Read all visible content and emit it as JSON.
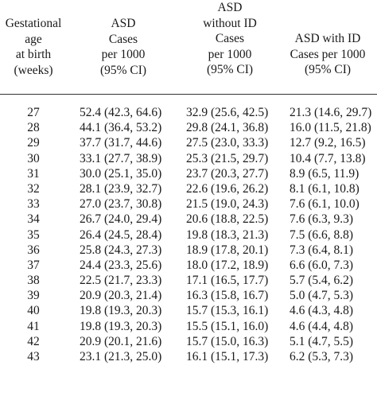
{
  "header": {
    "col1": [
      "Gestational",
      "age",
      "at birth",
      "(weeks)"
    ],
    "col2": [
      "ASD",
      "Cases",
      "per 1000",
      "(95% CI)"
    ],
    "col3": [
      "ASD",
      "without ID",
      "Cases",
      "per 1000",
      "(95% CI)"
    ],
    "col4": [
      "ASD with ID",
      "Cases per 1000",
      "(95% CI)"
    ]
  },
  "rows": [
    {
      "age": "27",
      "asd": "52.4 (42.3, 64.6)",
      "no_id": "32.9 (25.6, 42.5)",
      "with_id": "21.3 (14.6, 29.7)"
    },
    {
      "age": "28",
      "asd": "44.1 (36.4, 53.2)",
      "no_id": "29.8 (24.1, 36.8)",
      "with_id": "16.0 (11.5, 21.8)"
    },
    {
      "age": "29",
      "asd": "37.7 (31.7, 44.6)",
      "no_id": "27.5 (23.0, 33.3)",
      "with_id": "12.7 (9.2, 16.5)"
    },
    {
      "age": "30",
      "asd": "33.1 (27.7, 38.9)",
      "no_id": "25.3 (21.5, 29.7)",
      "with_id": "10.4 (7.7, 13.8)"
    },
    {
      "age": "31",
      "asd": "30.0 (25.1, 35.0)",
      "no_id": "23.7 (20.3, 27.7)",
      "with_id": "8.9 (6.5, 11.9)"
    },
    {
      "age": "32",
      "asd": "28.1 (23.9, 32.7)",
      "no_id": "22.6 (19.6, 26.2)",
      "with_id": "8.1 (6.1, 10.8)"
    },
    {
      "age": "33",
      "asd": "27.0 (23.7, 30.8)",
      "no_id": "21.5 (19.0, 24.3)",
      "with_id": "7.6 (6.1, 10.0)"
    },
    {
      "age": "34",
      "asd": "26.7 (24.0, 29.4)",
      "no_id": "20.6 (18.8, 22.5)",
      "with_id": "7.6 (6.3, 9.3)"
    },
    {
      "age": "35",
      "asd": "26.4 (24.5, 28.4)",
      "no_id": "19.8 (18.3, 21.3)",
      "with_id": "7.5 (6.6, 8.8)"
    },
    {
      "age": "36",
      "asd": "25.8 (24.3, 27.3)",
      "no_id": "18.9 (17.8, 20.1)",
      "with_id": "7.3 (6.4, 8.1)"
    },
    {
      "age": "37",
      "asd": "24.4 (23.3, 25.6)",
      "no_id": "18.0 (17.2, 18.9)",
      "with_id": "6.6 (6.0, 7.3)"
    },
    {
      "age": "38",
      "asd": "22.5 (21.7, 23.3)",
      "no_id": "17.1 (16.5, 17.7)",
      "with_id": "5.7 (5.4, 6.2)"
    },
    {
      "age": "39",
      "asd": "20.9 (20.3, 21.4)",
      "no_id": "16.3 (15.8, 16.7)",
      "with_id": "5.0 (4.7, 5.3)"
    },
    {
      "age": "40",
      "asd": "19.8 (19.3, 20.3)",
      "no_id": "15.7 (15.3, 16.1)",
      "with_id": "4.6 (4.3, 4.8)"
    },
    {
      "age": "41",
      "asd": "19.8 (19.3, 20.3)",
      "no_id": "15.5 (15.1, 16.0)",
      "with_id": "4.6 (4.4, 4.8)"
    },
    {
      "age": "42",
      "asd": "20.9 (20.1, 21.6)",
      "no_id": "15.7 (15.0, 16.3)",
      "with_id": "5.1 (4.7, 5.5)"
    },
    {
      "age": "43",
      "asd": "23.1 (21.3, 25.0)",
      "no_id": "16.1 (15.1, 17.3)",
      "with_id": "6.2 (5.3, 7.3)"
    }
  ]
}
